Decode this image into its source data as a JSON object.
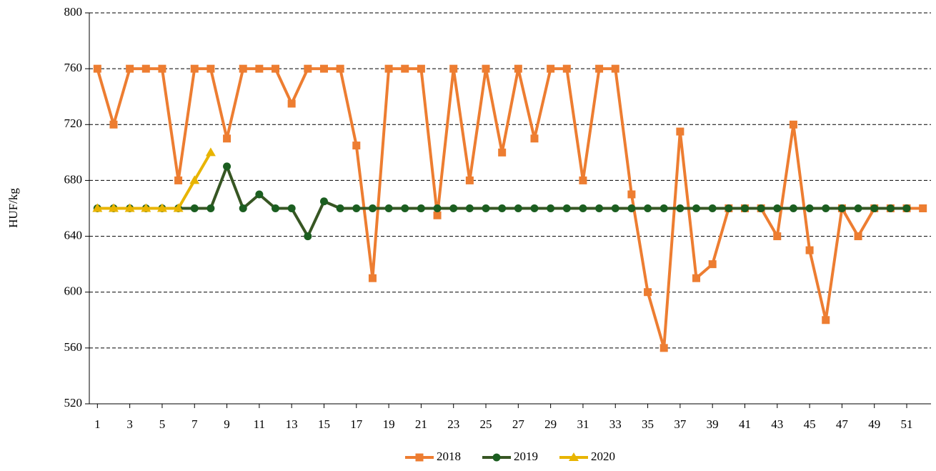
{
  "chart_data": {
    "type": "line",
    "y_label": "HUF/kg",
    "x": [
      1,
      2,
      3,
      4,
      5,
      6,
      7,
      8,
      9,
      10,
      11,
      12,
      13,
      14,
      15,
      16,
      17,
      18,
      19,
      20,
      21,
      22,
      23,
      24,
      25,
      26,
      27,
      28,
      29,
      30,
      31,
      32,
      33,
      34,
      35,
      36,
      37,
      38,
      39,
      40,
      41,
      42,
      43,
      44,
      45,
      46,
      47,
      48,
      49,
      50,
      51,
      52
    ],
    "xlim": [
      0.5,
      52.5
    ],
    "xticks": [
      1,
      3,
      5,
      7,
      9,
      11,
      13,
      15,
      17,
      19,
      21,
      23,
      25,
      27,
      29,
      31,
      33,
      35,
      37,
      39,
      41,
      43,
      45,
      47,
      49,
      51
    ],
    "ylim": [
      520,
      800
    ],
    "yticks": [
      520,
      560,
      600,
      640,
      680,
      720,
      760,
      800
    ],
    "grid": true,
    "legend": "bottom",
    "series": [
      {
        "name": "2018",
        "color": "#ed7d31",
        "marker": "square",
        "values": [
          760,
          720,
          760,
          760,
          760,
          680,
          760,
          760,
          710,
          760,
          760,
          760,
          735,
          760,
          760,
          760,
          705,
          610,
          760,
          760,
          760,
          655,
          760,
          680,
          760,
          700,
          760,
          710,
          760,
          760,
          680,
          760,
          760,
          670,
          600,
          560,
          715,
          610,
          620,
          660,
          660,
          660,
          640,
          720,
          630,
          580,
          660,
          640,
          660,
          660,
          660,
          660
        ]
      },
      {
        "name": "2019",
        "color": "#375623",
        "marker_color": "#1b5e20",
        "marker": "circle",
        "values": [
          660,
          660,
          660,
          660,
          660,
          660,
          660,
          660,
          690,
          660,
          670,
          660,
          660,
          640,
          665,
          660,
          660,
          660,
          660,
          660,
          660,
          660,
          660,
          660,
          660,
          660,
          660,
          660,
          660,
          660,
          660,
          660,
          660,
          660,
          660,
          660,
          660,
          660,
          660,
          660,
          660,
          660,
          660,
          660,
          660,
          660,
          660,
          660,
          660,
          660,
          660,
          null
        ]
      },
      {
        "name": "2020",
        "color": "#e8b400",
        "marker": "triangle",
        "values": [
          660,
          660,
          660,
          660,
          660,
          660,
          680,
          700,
          null,
          null,
          null,
          null,
          null,
          null,
          null,
          null,
          null,
          null,
          null,
          null,
          null,
          null,
          null,
          null,
          null,
          null,
          null,
          null,
          null,
          null,
          null,
          null,
          null,
          null,
          null,
          null,
          null,
          null,
          null,
          null,
          null,
          null,
          null,
          null,
          null,
          null,
          null,
          null,
          null,
          null,
          null,
          null
        ]
      }
    ]
  }
}
